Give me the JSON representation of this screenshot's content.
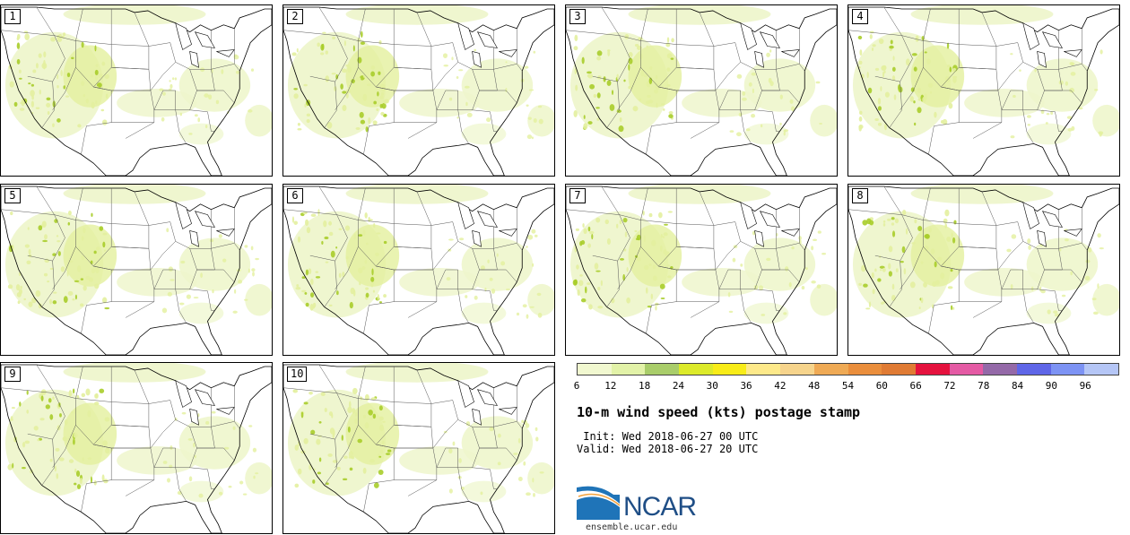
{
  "panels": [
    {
      "label": "1"
    },
    {
      "label": "2"
    },
    {
      "label": "3"
    },
    {
      "label": "4"
    },
    {
      "label": "5"
    },
    {
      "label": "6"
    },
    {
      "label": "7"
    },
    {
      "label": "8"
    },
    {
      "label": "9"
    },
    {
      "label": "10"
    }
  ],
  "legend": {
    "colors": [
      "#f1f8d0",
      "#e2f2a8",
      "#a9cd6a",
      "#dcea2a",
      "#f8ec18",
      "#fde98a",
      "#f6d48c",
      "#efaa55",
      "#ea8e3c",
      "#e07b34",
      "#e5123e",
      "#e45aa4",
      "#9469a8",
      "#5f66e8",
      "#7d93f4",
      "#b5c6f6"
    ],
    "ticks": [
      "6",
      "12",
      "18",
      "24",
      "30",
      "36",
      "42",
      "48",
      "54",
      "60",
      "66",
      "72",
      "78",
      "84",
      "90",
      "96"
    ],
    "tick_boundary_index": [
      0,
      1,
      2,
      3,
      4,
      5,
      6,
      7,
      8,
      9,
      10,
      11,
      12,
      13,
      14,
      15
    ]
  },
  "title": "10-m wind speed (kts) postage stamp",
  "init": " Init: Wed 2018-06-27 00 UTC",
  "valid": "Valid: Wed 2018-06-27 20 UTC",
  "logo": {
    "text": "NCAR",
    "url": "ensemble.ucar.edu"
  },
  "map_colors": {
    "light": "#eef6cc",
    "mid": "#e3f09e",
    "dark": "#a9cd2a",
    "border": "#000000",
    "state": "#555555"
  }
}
